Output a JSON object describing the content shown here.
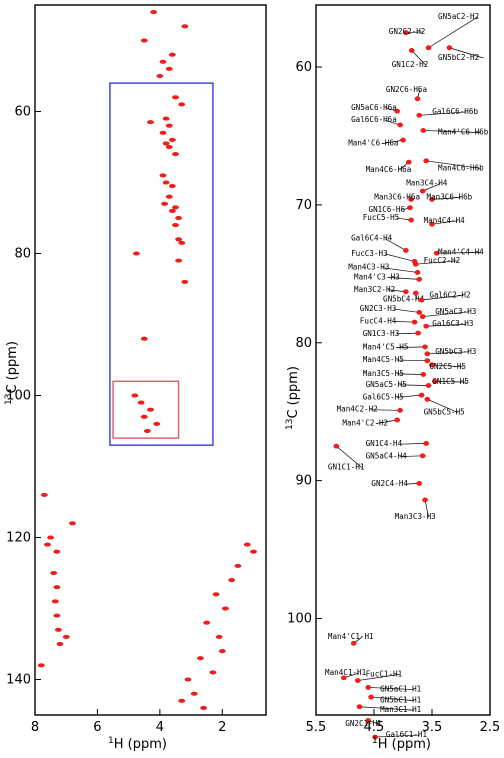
{
  "chart_data": [
    {
      "type": "scatter",
      "title": "",
      "xlabel": "H (ppm)",
      "ylabel": "C (ppm)",
      "x_isotope": "1",
      "y_isotope": "13",
      "xlim": [
        8,
        0.6
      ],
      "ylim": [
        45,
        145
      ],
      "x_ticks": [
        8,
        6,
        4,
        2
      ],
      "y_ticks": [
        60,
        80,
        100,
        120,
        140
      ],
      "x_tick_labels": [
        "8",
        "6",
        "4",
        "2"
      ],
      "y_tick_labels": [
        "60",
        "80",
        "100",
        "120",
        "140"
      ],
      "grid": false,
      "regions": [
        {
          "color": "#3a3adb",
          "x": [
            5.6,
            2.3
          ],
          "y": [
            56,
            107
          ]
        },
        {
          "color": "#e05a6a",
          "x": [
            5.5,
            3.4
          ],
          "y": [
            98,
            106
          ]
        }
      ],
      "points": [
        {
          "x": 4.2,
          "y": 46
        },
        {
          "x": 3.2,
          "y": 48
        },
        {
          "x": 4.5,
          "y": 50
        },
        {
          "x": 3.6,
          "y": 52
        },
        {
          "x": 3.9,
          "y": 53
        },
        {
          "x": 3.7,
          "y": 54
        },
        {
          "x": 4.0,
          "y": 55
        },
        {
          "x": 3.5,
          "y": 58
        },
        {
          "x": 3.3,
          "y": 59
        },
        {
          "x": 3.8,
          "y": 61
        },
        {
          "x": 4.3,
          "y": 61.5
        },
        {
          "x": 3.7,
          "y": 62
        },
        {
          "x": 3.9,
          "y": 63
        },
        {
          "x": 3.6,
          "y": 64
        },
        {
          "x": 3.8,
          "y": 64.5
        },
        {
          "x": 3.7,
          "y": 65
        },
        {
          "x": 3.5,
          "y": 66
        },
        {
          "x": 3.9,
          "y": 69
        },
        {
          "x": 3.8,
          "y": 70
        },
        {
          "x": 3.6,
          "y": 70.5
        },
        {
          "x": 3.7,
          "y": 72
        },
        {
          "x": 3.85,
          "y": 73
        },
        {
          "x": 3.5,
          "y": 73.5
        },
        {
          "x": 3.6,
          "y": 74
        },
        {
          "x": 3.4,
          "y": 75
        },
        {
          "x": 3.5,
          "y": 76
        },
        {
          "x": 3.4,
          "y": 78
        },
        {
          "x": 3.3,
          "y": 78.5
        },
        {
          "x": 3.4,
          "y": 81
        },
        {
          "x": 3.2,
          "y": 84
        },
        {
          "x": 4.75,
          "y": 80
        },
        {
          "x": 4.5,
          "y": 92
        },
        {
          "x": 4.8,
          "y": 100
        },
        {
          "x": 4.6,
          "y": 101
        },
        {
          "x": 4.3,
          "y": 102
        },
        {
          "x": 4.5,
          "y": 103
        },
        {
          "x": 4.1,
          "y": 104
        },
        {
          "x": 4.4,
          "y": 105
        },
        {
          "x": 7.7,
          "y": 114
        },
        {
          "x": 7.5,
          "y": 120
        },
        {
          "x": 7.6,
          "y": 121
        },
        {
          "x": 6.8,
          "y": 118
        },
        {
          "x": 7.3,
          "y": 122
        },
        {
          "x": 7.4,
          "y": 125
        },
        {
          "x": 7.3,
          "y": 127
        },
        {
          "x": 7.35,
          "y": 129
        },
        {
          "x": 7.3,
          "y": 131
        },
        {
          "x": 7.25,
          "y": 133
        },
        {
          "x": 7.2,
          "y": 135
        },
        {
          "x": 7.8,
          "y": 138
        },
        {
          "x": 7.0,
          "y": 134
        },
        {
          "x": 1.2,
          "y": 121
        },
        {
          "x": 1.0,
          "y": 122
        },
        {
          "x": 1.5,
          "y": 124
        },
        {
          "x": 1.7,
          "y": 126
        },
        {
          "x": 2.2,
          "y": 128
        },
        {
          "x": 1.9,
          "y": 130
        },
        {
          "x": 2.5,
          "y": 132
        },
        {
          "x": 2.1,
          "y": 134
        },
        {
          "x": 2.0,
          "y": 136
        },
        {
          "x": 2.7,
          "y": 137
        },
        {
          "x": 2.3,
          "y": 139
        },
        {
          "x": 3.1,
          "y": 140
        },
        {
          "x": 2.9,
          "y": 142
        },
        {
          "x": 3.3,
          "y": 143
        },
        {
          "x": 2.6,
          "y": 144
        }
      ]
    },
    {
      "type": "scatter",
      "title": "",
      "xlabel": "H (ppm)",
      "ylabel": "C (ppm)",
      "x_isotope": "1",
      "y_isotope": "13",
      "xlim": [
        5.5,
        2.5
      ],
      "ylim": [
        55.5,
        107
      ],
      "x_ticks": [
        5.5,
        4.5,
        3.5,
        2.5
      ],
      "y_ticks": [
        60,
        70,
        80,
        90,
        100
      ],
      "x_tick_labels": [
        "5.5",
        "4.5",
        "3.5",
        "2.5"
      ],
      "y_tick_labels": [
        "60",
        "70",
        "80",
        "90",
        "100"
      ],
      "grid": false,
      "peaks": [
        {
          "label": "GN5aC2-H2",
          "x": 3.56,
          "y": 58.6,
          "lx": 2.95,
          "ly": 56.5
        },
        {
          "label": "GN2C2-H2",
          "x": 3.95,
          "y": 57.5,
          "lx": 3.9,
          "ly": 57.6
        },
        {
          "label": "GN1C2-H2",
          "x": 3.85,
          "y": 58.8,
          "lx": 3.85,
          "ly": 60.0
        },
        {
          "label": "GN5bC2-H2",
          "x": 3.2,
          "y": 58.6,
          "lx": 2.85,
          "ly": 59.5
        },
        {
          "label": "GN2C6-H6a",
          "x": 3.75,
          "y": 62.3,
          "lx": 3.95,
          "ly": 61.8
        },
        {
          "label": "GN5aC6-H6a",
          "x": 4.1,
          "y": 63.2,
          "lx": 4.55,
          "ly": 63.1
        },
        {
          "label": "Gal6C6-H6b",
          "x": 3.72,
          "y": 63.5,
          "lx": 3.15,
          "ly": 63.4
        },
        {
          "label": "Gal6C6-H6a",
          "x": 4.05,
          "y": 64.2,
          "lx": 4.55,
          "ly": 64.0
        },
        {
          "label": "Man4'C6-H6b",
          "x": 3.65,
          "y": 64.6,
          "lx": 2.9,
          "ly": 64.9
        },
        {
          "label": "Man4'C6-H6a",
          "x": 4.0,
          "y": 65.3,
          "lx": 4.6,
          "ly": 65.7
        },
        {
          "label": "Man4C6-H6a",
          "x": 3.9,
          "y": 66.9,
          "lx": 4.3,
          "ly": 67.6
        },
        {
          "label": "Man4C6-H6b",
          "x": 3.6,
          "y": 66.8,
          "lx": 2.9,
          "ly": 67.5
        },
        {
          "label": "Man3C4-H4",
          "x": 3.66,
          "y": 69.0,
          "lx": 3.6,
          "ly": 68.6
        },
        {
          "label": "Man3C6-H6a",
          "x": 3.86,
          "y": 69.6,
          "lx": 4.15,
          "ly": 69.6
        },
        {
          "label": "Man3C6-H6b",
          "x": 3.5,
          "y": 69.6,
          "lx": 3.25,
          "ly": 69.6
        },
        {
          "label": "GN1C6-H6",
          "x": 3.88,
          "y": 70.2,
          "lx": 4.25,
          "ly": 70.5
        },
        {
          "label": "Man4C4-H4",
          "x": 3.5,
          "y": 71.4,
          "lx": 3.3,
          "ly": 71.3
        },
        {
          "label": "FucC5-H5",
          "x": 3.86,
          "y": 71.1,
          "lx": 4.35,
          "ly": 71.1
        },
        {
          "label": "Gal6C4-H4",
          "x": 3.95,
          "y": 73.3,
          "lx": 4.55,
          "ly": 72.6
        },
        {
          "label": "Man4'C4-H4",
          "x": 3.42,
          "y": 73.5,
          "lx": 2.9,
          "ly": 73.6
        },
        {
          "label": "FucC3-H3",
          "x": 3.8,
          "y": 74.1,
          "lx": 4.55,
          "ly": 73.7
        },
        {
          "label": "FucC2-H2",
          "x": 3.78,
          "y": 74.3,
          "lx": 3.3,
          "ly": 74.2
        },
        {
          "label": "Man4C3-H3",
          "x": 3.75,
          "y": 74.9,
          "lx": 4.6,
          "ly": 74.7
        },
        {
          "label": "Man4'C3-H3",
          "x": 3.72,
          "y": 75.4,
          "lx": 4.5,
          "ly": 75.4
        },
        {
          "label": "Man3C2-H2",
          "x": 3.95,
          "y": 76.3,
          "lx": 4.5,
          "ly": 76.3
        },
        {
          "label": "GN5bC4-H4",
          "x": 3.78,
          "y": 76.4,
          "lx": 4.0,
          "ly": 77.0
        },
        {
          "label": "Gal6C2-H2",
          "x": 3.68,
          "y": 76.9,
          "lx": 3.2,
          "ly": 76.7
        },
        {
          "label": "GN2C3-H3",
          "x": 3.72,
          "y": 77.8,
          "lx": 4.4,
          "ly": 77.7
        },
        {
          "label": "GN5aC3-H3",
          "x": 3.66,
          "y": 78.1,
          "lx": 3.1,
          "ly": 77.9
        },
        {
          "label": "FucC4-H4",
          "x": 3.8,
          "y": 78.5,
          "lx": 4.4,
          "ly": 78.6
        },
        {
          "label": "Gal6C3-H3",
          "x": 3.6,
          "y": 78.8,
          "lx": 3.15,
          "ly": 78.8
        },
        {
          "label": "GN1C3-H3",
          "x": 3.74,
          "y": 79.3,
          "lx": 4.35,
          "ly": 79.5
        },
        {
          "label": "Man4'C5-H5",
          "x": 3.62,
          "y": 80.3,
          "lx": 4.35,
          "ly": 80.5
        },
        {
          "label": "GN5bC3-H3",
          "x": 3.58,
          "y": 80.8,
          "lx": 3.1,
          "ly": 80.8
        },
        {
          "label": "Man4C5-H5",
          "x": 3.58,
          "y": 81.3,
          "lx": 4.35,
          "ly": 81.4
        },
        {
          "label": "GN2C5-H5",
          "x": 3.5,
          "y": 81.6,
          "lx": 3.2,
          "ly": 81.9
        },
        {
          "label": "Man3C5-H5",
          "x": 3.65,
          "y": 82.3,
          "lx": 4.35,
          "ly": 82.4
        },
        {
          "label": "GN5aC5-H5",
          "x": 3.56,
          "y": 83.1,
          "lx": 4.3,
          "ly": 83.2
        },
        {
          "label": "GN1C5-H5",
          "x": 3.45,
          "y": 82.8,
          "lx": 3.15,
          "ly": 83.0
        },
        {
          "label": "Gal6C5-H5",
          "x": 3.68,
          "y": 83.8,
          "lx": 4.35,
          "ly": 84.1
        },
        {
          "label": "Man4C2-H2",
          "x": 4.05,
          "y": 84.9,
          "lx": 4.8,
          "ly": 85.0
        },
        {
          "label": "GN5bC5-H5",
          "x": 3.58,
          "y": 84.1,
          "lx": 3.3,
          "ly": 85.2
        },
        {
          "label": "Man4'C2-H2",
          "x": 4.1,
          "y": 85.6,
          "lx": 4.7,
          "ly": 86.0
        },
        {
          "label": "GN1C4-H4",
          "x": 3.6,
          "y": 87.3,
          "lx": 4.3,
          "ly": 87.5
        },
        {
          "label": "GN5aC4-H4",
          "x": 3.66,
          "y": 88.2,
          "lx": 4.3,
          "ly": 88.4
        },
        {
          "label": "GN1C1-H1",
          "x": 5.15,
          "y": 87.5,
          "lx": 4.95,
          "ly": 89.2
        },
        {
          "label": "GN2C4-H4",
          "x": 3.72,
          "y": 90.2,
          "lx": 4.2,
          "ly": 90.4
        },
        {
          "label": "Man3C3-H3",
          "x": 3.62,
          "y": 91.4,
          "lx": 3.8,
          "ly": 92.8
        },
        {
          "label": "Man4'C1-H1",
          "x": 4.85,
          "y": 101.8,
          "lx": 4.95,
          "ly": 101.5
        },
        {
          "label": "Man4C1-H1",
          "x": 5.02,
          "y": 104.3,
          "lx": 5.0,
          "ly": 104.1
        },
        {
          "label": "FucC1-H1",
          "x": 4.78,
          "y": 104.5,
          "lx": 4.3,
          "ly": 104.2
        },
        {
          "label": "GN5aC1-H1",
          "x": 4.6,
          "y": 105.0,
          "lx": 4.05,
          "ly": 105.3
        },
        {
          "label": "GN5bC1-H1",
          "x": 4.55,
          "y": 105.7,
          "lx": 4.05,
          "ly": 106.1
        },
        {
          "label": "Man3C1-H1",
          "x": 4.75,
          "y": 106.4,
          "lx": 4.05,
          "ly": 106.8
        },
        {
          "label": "GN2C1-H1",
          "x": 4.6,
          "y": 107.4,
          "lx": 4.65,
          "ly": 107.8
        },
        {
          "label": "Gal6C1-H1",
          "x": 4.48,
          "y": 108.6,
          "lx": 3.95,
          "ly": 108.6
        }
      ]
    }
  ]
}
